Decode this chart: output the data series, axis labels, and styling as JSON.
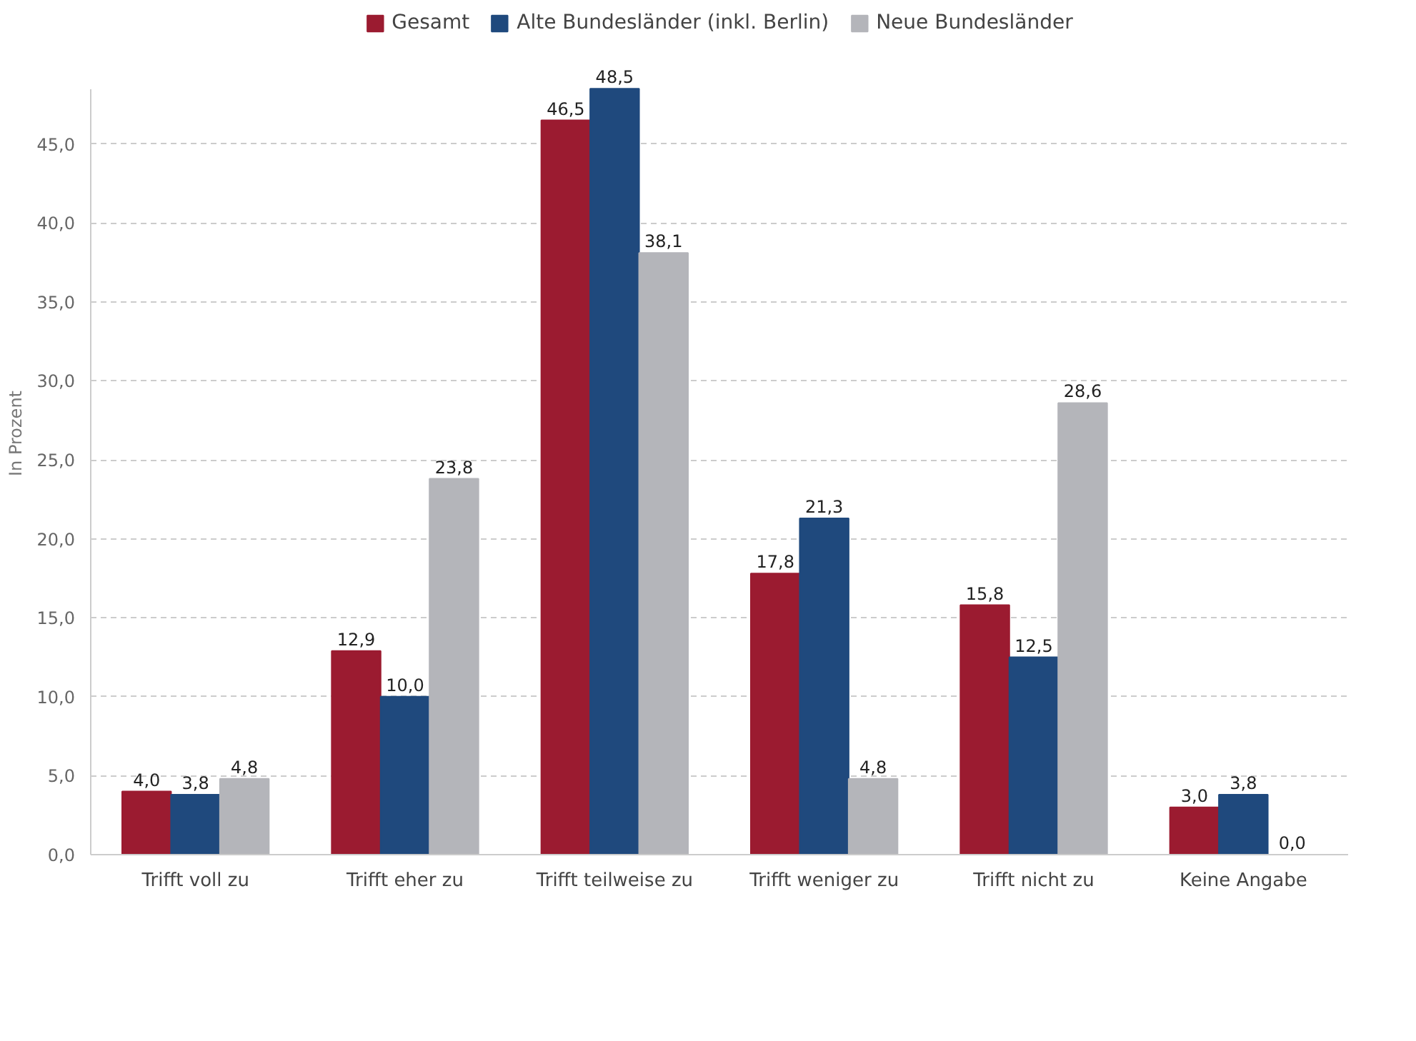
{
  "chart_data": {
    "type": "bar",
    "ylabel": "In Prozent",
    "categories": [
      "Trifft voll zu",
      "Trifft eher zu",
      "Trifft teilweise zu",
      "Trifft weniger zu",
      "Trifft nicht zu",
      "Keine Angabe"
    ],
    "series": [
      {
        "name": "Gesamt",
        "color": "#9b1b30",
        "values": [
          4.0,
          12.9,
          46.5,
          17.8,
          15.8,
          3.0
        ],
        "value_labels": [
          "4,0",
          "12,9",
          "46,5",
          "17,8",
          "15,8",
          "3,0"
        ]
      },
      {
        "name": "Alte Bundesländer (inkl. Berlin)",
        "color": "#1f497d",
        "values": [
          3.8,
          10.0,
          48.5,
          21.3,
          12.5,
          3.8
        ],
        "value_labels": [
          "3,8",
          "10,0",
          "48,5",
          "21,3",
          "12,5",
          "3,8"
        ]
      },
      {
        "name": "Neue Bundesländer",
        "color": "#b4b5ba",
        "values": [
          4.8,
          23.8,
          38.1,
          4.8,
          28.6,
          0.0
        ],
        "value_labels": [
          "4,8",
          "23,8",
          "38,1",
          "4,8",
          "28,6",
          "0,0"
        ]
      }
    ],
    "ylim": [
      0,
      48.5
    ],
    "yticks": [
      {
        "value": 0,
        "label": "0,0"
      },
      {
        "value": 5,
        "label": "5,0"
      },
      {
        "value": 10,
        "label": "10,0"
      },
      {
        "value": 15,
        "label": "15,0"
      },
      {
        "value": 20,
        "label": "20,0"
      },
      {
        "value": 25,
        "label": "25,0"
      },
      {
        "value": 30,
        "label": "30,0"
      },
      {
        "value": 35,
        "label": "35,0"
      },
      {
        "value": 40,
        "label": "40,0"
      },
      {
        "value": 45,
        "label": "45,0"
      }
    ],
    "grid": "y",
    "legend": "top"
  }
}
